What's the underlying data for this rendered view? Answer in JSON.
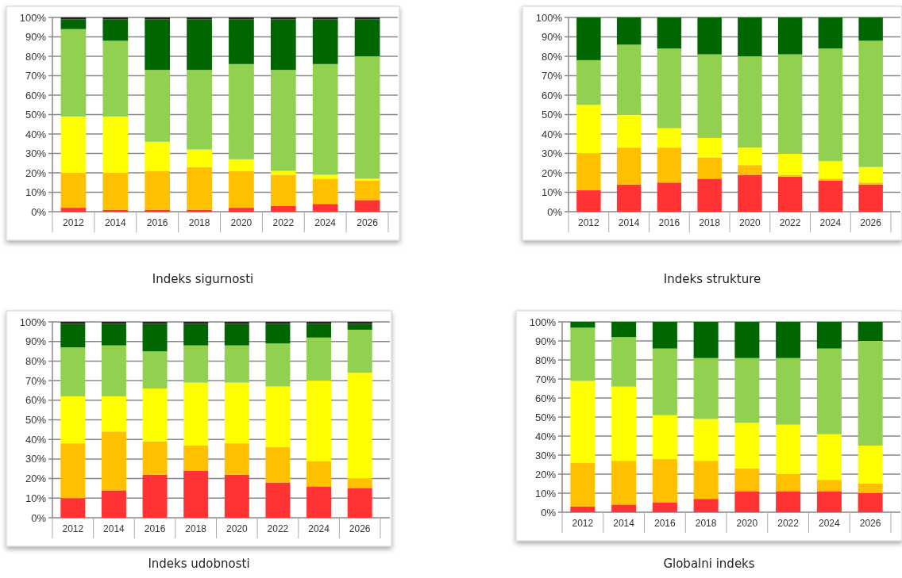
{
  "chart_data": [
    {
      "type": "bar",
      "stacked": true,
      "title": "Indeks sigurnosti",
      "categories": [
        "2012",
        "2014",
        "2016",
        "2018",
        "2020",
        "2022",
        "2024",
        "2026"
      ],
      "ylim": [
        0,
        100
      ],
      "yticks": [
        {
          "value": 0,
          "label": "0%"
        },
        {
          "value": 10,
          "label": "10%"
        },
        {
          "value": 20,
          "label": "20%"
        },
        {
          "value": 30,
          "label": "30%"
        },
        {
          "value": 40,
          "label": "40%"
        },
        {
          "value": 50,
          "label": "50%"
        },
        {
          "value": 60,
          "label": "60%"
        },
        {
          "value": 70,
          "label": "70%"
        },
        {
          "value": 80,
          "label": "80%"
        },
        {
          "value": 90,
          "label": "90%"
        },
        {
          "value": 100,
          "label": "100%"
        }
      ],
      "grid": "y",
      "series": [
        {
          "color": "#ff3333",
          "values": [
            2,
            1,
            1,
            1,
            2,
            3,
            4,
            6
          ]
        },
        {
          "color": "#ffc000",
          "values": [
            18,
            19,
            20,
            22,
            19,
            16,
            13,
            10
          ]
        },
        {
          "color": "#ffff00",
          "values": [
            29,
            29,
            15,
            9,
            6,
            2,
            2,
            1
          ]
        },
        {
          "color": "#92d050",
          "values": [
            45,
            39,
            37,
            41,
            49,
            52,
            57,
            63
          ]
        },
        {
          "color": "#006600",
          "values": [
            5,
            11,
            26,
            26,
            23,
            26,
            23,
            19
          ]
        },
        {
          "color": "#222222",
          "values": [
            1,
            1,
            1,
            1,
            1,
            1,
            1,
            1
          ]
        }
      ]
    },
    {
      "type": "bar",
      "stacked": true,
      "title": "Indeks strukture",
      "categories": [
        "2012",
        "2014",
        "2016",
        "2018",
        "2020",
        "2022",
        "2024",
        "2026"
      ],
      "ylim": [
        0,
        100
      ],
      "yticks": [
        {
          "value": 0,
          "label": "0%"
        },
        {
          "value": 10,
          "label": "10%"
        },
        {
          "value": 20,
          "label": "20%"
        },
        {
          "value": 30,
          "label": "30%"
        },
        {
          "value": 40,
          "label": "40%"
        },
        {
          "value": 50,
          "label": "50%"
        },
        {
          "value": 60,
          "label": "60%"
        },
        {
          "value": 70,
          "label": "70%"
        },
        {
          "value": 80,
          "label": "80%"
        },
        {
          "value": 90,
          "label": "90%"
        },
        {
          "value": 100,
          "label": "100%"
        }
      ],
      "grid": "y",
      "series": [
        {
          "color": "#ff3333",
          "values": [
            11,
            14,
            15,
            17,
            19,
            18,
            16,
            14
          ]
        },
        {
          "color": "#ffc000",
          "values": [
            19,
            19,
            18,
            11,
            5,
            1,
            1,
            1
          ]
        },
        {
          "color": "#ffff00",
          "values": [
            25,
            17,
            10,
            10,
            9,
            11,
            9,
            8
          ]
        },
        {
          "color": "#92d050",
          "values": [
            23,
            36,
            41,
            43,
            47,
            51,
            58,
            65
          ]
        },
        {
          "color": "#006600",
          "values": [
            22,
            14,
            16,
            19,
            20,
            19,
            16,
            12
          ]
        }
      ]
    },
    {
      "type": "bar",
      "stacked": true,
      "title": "Indeks udobnosti",
      "categories": [
        "2012",
        "2014",
        "2016",
        "2018",
        "2020",
        "2022",
        "2024",
        "2026"
      ],
      "ylim": [
        0,
        100
      ],
      "yticks": [
        {
          "value": 0,
          "label": "0%"
        },
        {
          "value": 10,
          "label": "10%"
        },
        {
          "value": 20,
          "label": "20%"
        },
        {
          "value": 30,
          "label": "30%"
        },
        {
          "value": 40,
          "label": "40%"
        },
        {
          "value": 50,
          "label": "50%"
        },
        {
          "value": 60,
          "label": "60%"
        },
        {
          "value": 70,
          "label": "70%"
        },
        {
          "value": 80,
          "label": "80%"
        },
        {
          "value": 90,
          "label": "90%"
        },
        {
          "value": 100,
          "label": "100%"
        }
      ],
      "grid": "y",
      "series": [
        {
          "color": "#ff3333",
          "values": [
            10,
            14,
            22,
            24,
            22,
            18,
            16,
            15
          ]
        },
        {
          "color": "#ffc000",
          "values": [
            28,
            30,
            17,
            13,
            16,
            18,
            13,
            5
          ]
        },
        {
          "color": "#ffff00",
          "values": [
            24,
            18,
            27,
            32,
            31,
            31,
            41,
            54
          ]
        },
        {
          "color": "#92d050",
          "values": [
            25,
            26,
            19,
            19,
            19,
            22,
            22,
            22
          ]
        },
        {
          "color": "#006600",
          "values": [
            12,
            11,
            14,
            11,
            11,
            10,
            7,
            3
          ]
        },
        {
          "color": "#222222",
          "values": [
            1,
            1,
            1,
            1,
            1,
            1,
            1,
            1
          ]
        }
      ]
    },
    {
      "type": "bar",
      "stacked": true,
      "title": "Globalni indeks",
      "categories": [
        "2012",
        "2014",
        "2016",
        "2018",
        "2020",
        "2022",
        "2024",
        "2026"
      ],
      "ylim": [
        0,
        100
      ],
      "yticks": [
        {
          "value": 0,
          "label": "0%"
        },
        {
          "value": 10,
          "label": "10%"
        },
        {
          "value": 20,
          "label": "20%"
        },
        {
          "value": 30,
          "label": "30%"
        },
        {
          "value": 40,
          "label": "40%"
        },
        {
          "value": 50,
          "label": "50%"
        },
        {
          "value": 60,
          "label": "60%"
        },
        {
          "value": 70,
          "label": "70%"
        },
        {
          "value": 80,
          "label": "80%"
        },
        {
          "value": 90,
          "label": "90%"
        },
        {
          "value": 100,
          "label": "100%"
        }
      ],
      "grid": "y",
      "series": [
        {
          "color": "#ff3333",
          "values": [
            3,
            4,
            5,
            7,
            11,
            11,
            11,
            10
          ]
        },
        {
          "color": "#ffc000",
          "values": [
            23,
            23,
            23,
            20,
            12,
            9,
            6,
            5
          ]
        },
        {
          "color": "#ffff00",
          "values": [
            43,
            39,
            23,
            22,
            24,
            26,
            24,
            20
          ]
        },
        {
          "color": "#92d050",
          "values": [
            28,
            26,
            35,
            32,
            34,
            35,
            45,
            55
          ]
        },
        {
          "color": "#006600",
          "values": [
            3,
            8,
            14,
            19,
            19,
            19,
            14,
            10
          ]
        }
      ]
    }
  ]
}
